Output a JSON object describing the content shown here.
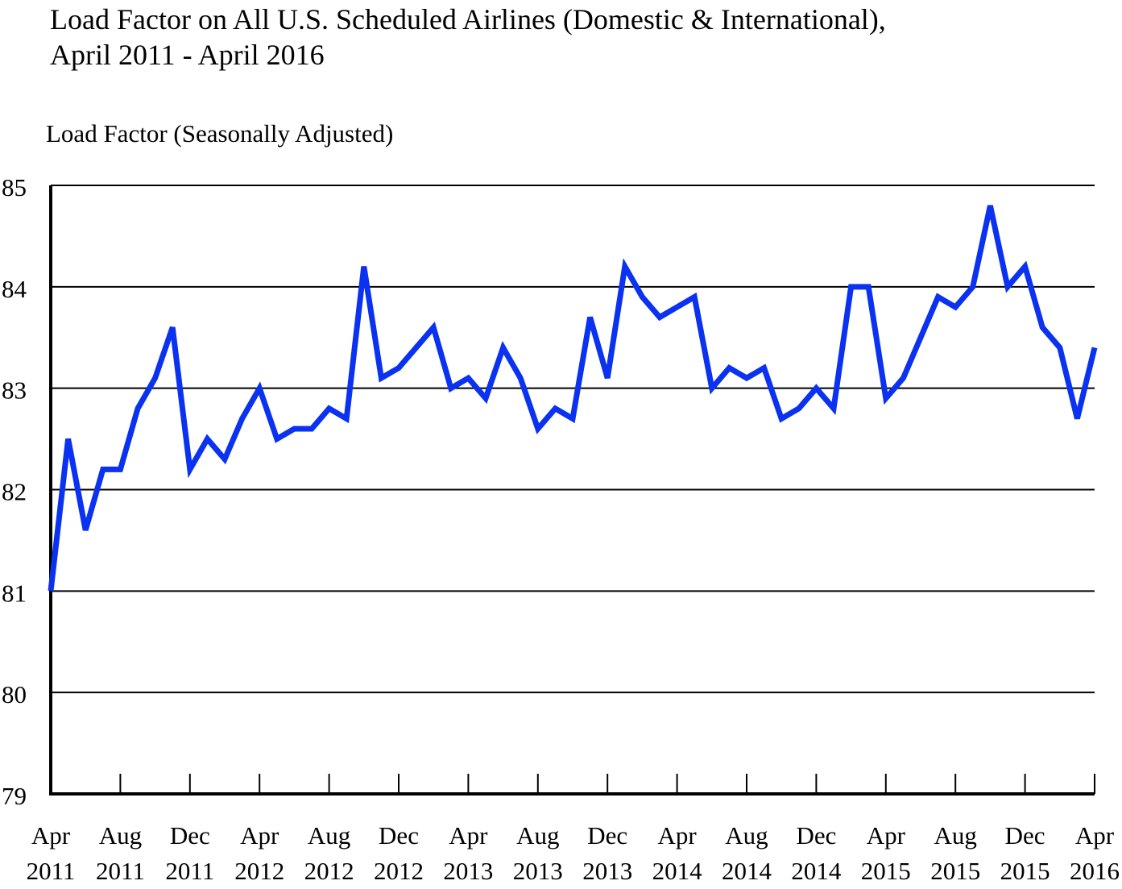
{
  "title_line1": "Load Factor on All U.S. Scheduled Airlines (Domestic & International),",
  "title_line2": "April 2011 - April 2016",
  "chart_data": {
    "type": "line",
    "title": "Load Factor on All U.S. Scheduled Airlines (Domestic & International), April 2011 - April 2016",
    "ylabel": "Load Factor (Seasonally Adjusted)",
    "xlabel": "",
    "ylim": [
      79,
      85
    ],
    "yticks": [
      "79",
      "80",
      "81",
      "82",
      "83",
      "84",
      "85"
    ],
    "grid": true,
    "series_color": "#0a32f0",
    "x_tick_labels": [
      [
        "Apr",
        "2011"
      ],
      [
        "Aug",
        "2011"
      ],
      [
        "Dec",
        "2011"
      ],
      [
        "Apr",
        "2012"
      ],
      [
        "Aug",
        "2012"
      ],
      [
        "Dec",
        "2012"
      ],
      [
        "Apr",
        "2013"
      ],
      [
        "Aug",
        "2013"
      ],
      [
        "Dec",
        "2013"
      ],
      [
        "Apr",
        "2014"
      ],
      [
        "Aug",
        "2014"
      ],
      [
        "Dec",
        "2014"
      ],
      [
        "Apr",
        "2015"
      ],
      [
        "Aug",
        "2015"
      ],
      [
        "Dec",
        "2015"
      ],
      [
        "Apr",
        "2016"
      ]
    ],
    "series": [
      {
        "name": "Load Factor",
        "values": [
          81.0,
          82.5,
          81.6,
          82.2,
          82.2,
          82.8,
          83.1,
          83.6,
          82.2,
          82.5,
          82.3,
          82.7,
          83.0,
          82.5,
          82.6,
          82.6,
          82.8,
          82.7,
          84.2,
          83.1,
          83.2,
          83.4,
          83.6,
          83.0,
          83.1,
          82.9,
          83.4,
          83.1,
          82.6,
          82.8,
          82.7,
          83.7,
          83.1,
          84.2,
          83.9,
          83.7,
          83.8,
          83.9,
          83.0,
          83.2,
          83.1,
          83.2,
          82.7,
          82.8,
          83.0,
          82.8,
          84.0,
          84.0,
          82.9,
          83.1,
          83.5,
          83.9,
          83.8,
          84.0,
          84.8,
          84.0,
          84.2,
          83.6,
          83.4,
          82.7,
          83.4
        ]
      }
    ]
  }
}
